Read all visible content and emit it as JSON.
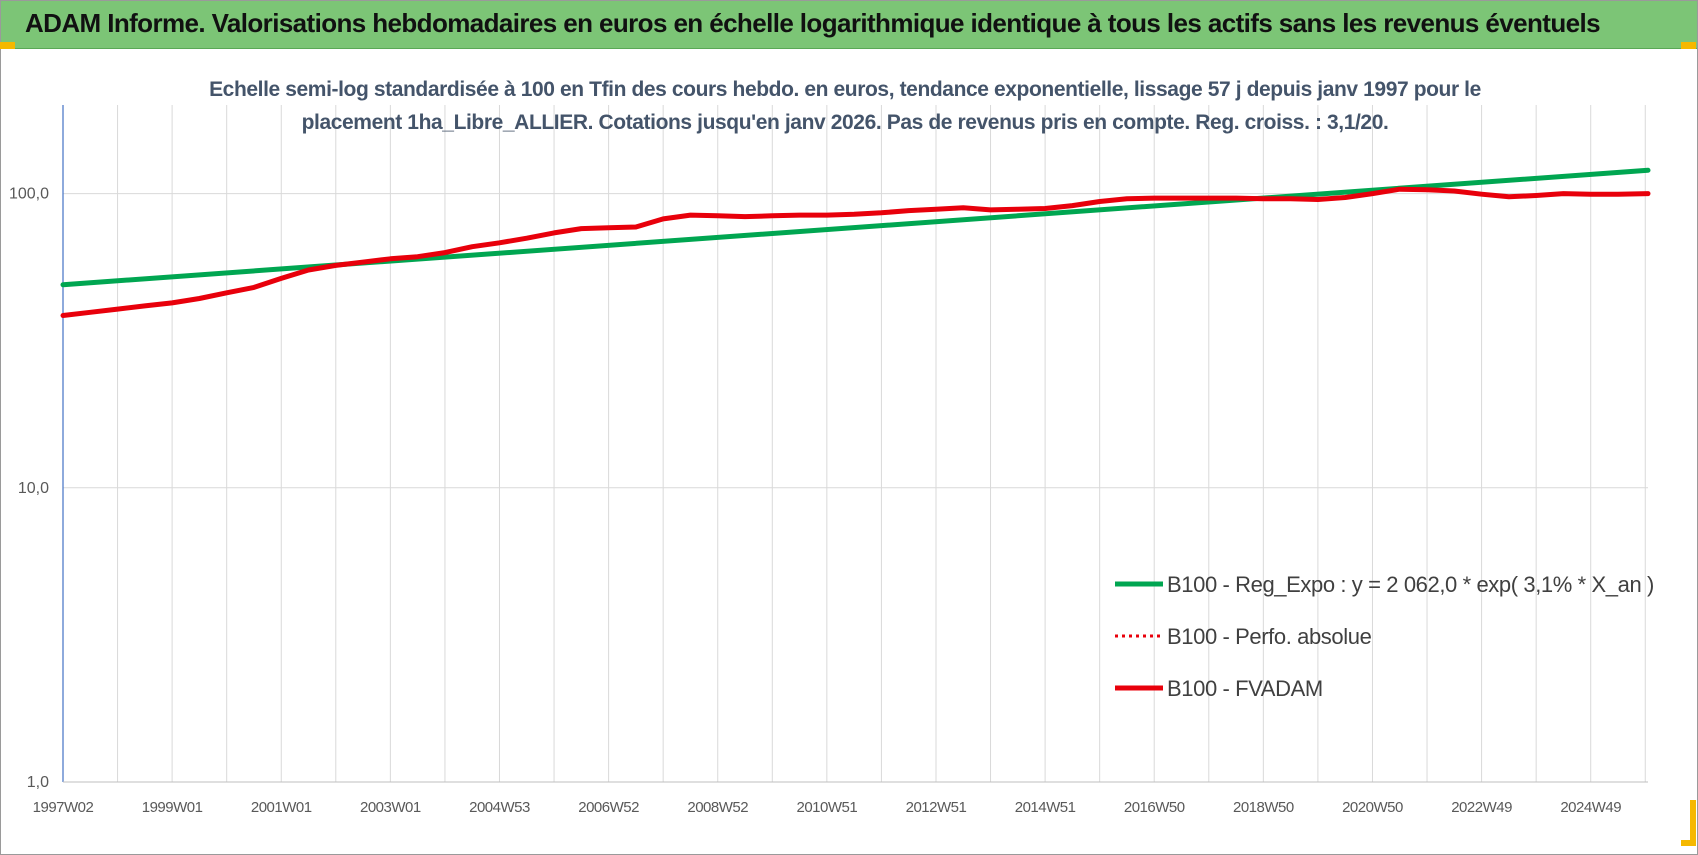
{
  "banner": {
    "title": "ADAM Informe. Valorisations hebdomadaires en euros en échelle logarithmique identique à tous les actifs sans les revenus éventuels"
  },
  "colors": {
    "banner_bg": "#7cc576",
    "regression": "#00a651",
    "perfo": "#e8000b",
    "fvadam": "#e8000b",
    "axis": "#4472c4",
    "grid": "#d9d9d9",
    "corner_marks": "#f5b800"
  },
  "chart_data": {
    "type": "line",
    "title_lines": [
      "Echelle semi-log standardisée à 100 en Tfin des cours hebdo. en euros, tendance exponentielle, lissage 57 j depuis janv 1997 pour le",
      "placement 1ha_Libre_ALLIER. Cotations jusqu'en janv 2026. Pas de revenus pris en compte. Reg. croiss. : 3,1/20."
    ],
    "y_scale": "log",
    "ylim": [
      1,
      200
    ],
    "y_ticks": [
      {
        "value": 1,
        "label": "1,0"
      },
      {
        "value": 10,
        "label": "10,0"
      },
      {
        "value": 100,
        "label": "100,0"
      }
    ],
    "x_range": [
      1997.0,
      2026.05
    ],
    "x_ticks": [
      {
        "x": 1997.0,
        "label": "1997W02"
      },
      {
        "x": 1999.0,
        "label": "1999W01"
      },
      {
        "x": 2001.0,
        "label": "2001W01"
      },
      {
        "x": 2003.0,
        "label": "2003W01"
      },
      {
        "x": 2005.0,
        "label": "2004W53"
      },
      {
        "x": 2007.0,
        "label": "2006W52"
      },
      {
        "x": 2009.0,
        "label": "2008W52"
      },
      {
        "x": 2011.0,
        "label": "2010W51"
      },
      {
        "x": 2013.0,
        "label": "2012W51"
      },
      {
        "x": 2015.0,
        "label": "2014W51"
      },
      {
        "x": 2017.0,
        "label": "2016W50"
      },
      {
        "x": 2019.0,
        "label": "2018W50"
      },
      {
        "x": 2021.0,
        "label": "2020W50"
      },
      {
        "x": 2023.0,
        "label": "2022W49"
      },
      {
        "x": 2025.0,
        "label": "2024W49"
      }
    ],
    "legend_position": "bottom-right",
    "series": [
      {
        "name": "B100 - Reg_Expo : y = 2 062,0 * exp( 3,1% *  X_an )",
        "style": "solid-green",
        "points": [
          [
            1997.0,
            49.0
          ],
          [
            2026.05,
            120.0
          ]
        ]
      },
      {
        "name": "B100 - Perfo. absolue",
        "style": "dotted-red",
        "points": []
      },
      {
        "name": "B100 - FVADAM",
        "style": "solid-red",
        "points": [
          [
            1997.0,
            38.5
          ],
          [
            1997.5,
            39.5
          ],
          [
            1998.0,
            40.5
          ],
          [
            1998.5,
            41.5
          ],
          [
            1999.0,
            42.5
          ],
          [
            1999.5,
            44.0
          ],
          [
            2000.0,
            46.0
          ],
          [
            2000.5,
            48.0
          ],
          [
            2001.0,
            51.5
          ],
          [
            2001.5,
            55.0
          ],
          [
            2002.0,
            57.0
          ],
          [
            2002.5,
            58.5
          ],
          [
            2003.0,
            60.0
          ],
          [
            2003.5,
            61.0
          ],
          [
            2004.0,
            63.0
          ],
          [
            2004.5,
            66.0
          ],
          [
            2005.0,
            68.0
          ],
          [
            2005.5,
            70.5
          ],
          [
            2006.0,
            73.5
          ],
          [
            2006.5,
            76.0
          ],
          [
            2007.0,
            76.5
          ],
          [
            2007.5,
            77.0
          ],
          [
            2008.0,
            82.0
          ],
          [
            2008.5,
            84.5
          ],
          [
            2009.0,
            84.0
          ],
          [
            2009.5,
            83.5
          ],
          [
            2010.0,
            84.0
          ],
          [
            2010.5,
            84.5
          ],
          [
            2011.0,
            84.5
          ],
          [
            2011.5,
            85.0
          ],
          [
            2012.0,
            86.0
          ],
          [
            2012.5,
            87.5
          ],
          [
            2013.0,
            88.5
          ],
          [
            2013.5,
            89.5
          ],
          [
            2014.0,
            88.0
          ],
          [
            2014.5,
            88.5
          ],
          [
            2015.0,
            89.0
          ],
          [
            2015.5,
            91.0
          ],
          [
            2016.0,
            94.0
          ],
          [
            2016.5,
            96.0
          ],
          [
            2017.0,
            96.5
          ],
          [
            2017.5,
            96.5
          ],
          [
            2018.0,
            96.5
          ],
          [
            2018.5,
            96.5
          ],
          [
            2019.0,
            96.0
          ],
          [
            2019.5,
            96.0
          ],
          [
            2020.0,
            95.5
          ],
          [
            2020.5,
            97.0
          ],
          [
            2021.0,
            100.0
          ],
          [
            2021.5,
            103.5
          ],
          [
            2022.0,
            103.0
          ],
          [
            2022.5,
            102.0
          ],
          [
            2023.0,
            99.5
          ],
          [
            2023.5,
            97.5
          ],
          [
            2024.0,
            98.5
          ],
          [
            2024.5,
            100.0
          ],
          [
            2025.0,
            99.5
          ],
          [
            2025.5,
            99.5
          ],
          [
            2026.05,
            100.0
          ]
        ]
      }
    ]
  }
}
